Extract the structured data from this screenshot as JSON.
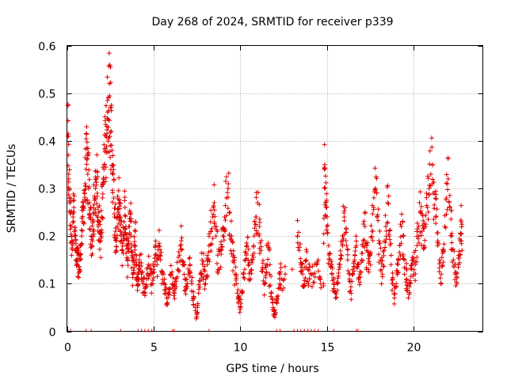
{
  "chart_data": {
    "type": "scatter",
    "title": "Day 268 of 2024, SRMTID for receiver p339",
    "xlabel": "GPS time / hours",
    "ylabel": "SRMTID / TECUs",
    "xlim": [
      0,
      24
    ],
    "ylim": [
      0,
      0.6
    ],
    "x_ticks": [
      0,
      5,
      10,
      15,
      20
    ],
    "y_ticks": [
      0,
      0.1,
      0.2,
      0.3,
      0.4,
      0.5,
      0.6
    ],
    "x_tick_labels": [
      "0",
      "5",
      "10",
      "15",
      "20"
    ],
    "y_tick_labels": [
      "0",
      "0.1",
      "0.2",
      "0.3",
      "0.4",
      "0.5",
      "0.6"
    ],
    "grid": true,
    "marker": "+",
    "series": [
      {
        "name": "SRMTID",
        "color": "#e00000",
        "points": [
          [
            0.05,
            0.41
          ],
          [
            0.08,
            0.37
          ],
          [
            0.1,
            0.33
          ],
          [
            0.15,
            0.28
          ],
          [
            0.2,
            0.25
          ],
          [
            0.25,
            0.22
          ],
          [
            0.3,
            0.19
          ],
          [
            0.35,
            0.24
          ],
          [
            0.4,
            0.26
          ],
          [
            0.45,
            0.2
          ],
          [
            0.5,
            0.17
          ],
          [
            0.55,
            0.15
          ],
          [
            0.6,
            0.14
          ],
          [
            0.65,
            0.16
          ],
          [
            0.7,
            0.13
          ],
          [
            0.75,
            0.15
          ],
          [
            0.8,
            0.18
          ],
          [
            0.85,
            0.2
          ],
          [
            0.9,
            0.23
          ],
          [
            0.95,
            0.26
          ],
          [
            1.0,
            0.29
          ],
          [
            1.05,
            0.31
          ],
          [
            1.1,
            0.34
          ],
          [
            1.15,
            0.36
          ],
          [
            1.2,
            0.33
          ],
          [
            1.25,
            0.3
          ],
          [
            1.3,
            0.27
          ],
          [
            1.35,
            0.24
          ],
          [
            1.4,
            0.2
          ],
          [
            1.45,
            0.18
          ],
          [
            1.5,
            0.21
          ],
          [
            1.55,
            0.25
          ],
          [
            1.6,
            0.28
          ],
          [
            1.65,
            0.3
          ],
          [
            1.7,
            0.32
          ],
          [
            1.75,
            0.29
          ],
          [
            1.8,
            0.26
          ],
          [
            1.85,
            0.23
          ],
          [
            1.9,
            0.21
          ],
          [
            1.95,
            0.19
          ],
          [
            2.0,
            0.24
          ],
          [
            2.05,
            0.28
          ],
          [
            2.1,
            0.31
          ],
          [
            2.15,
            0.35
          ],
          [
            2.2,
            0.38
          ],
          [
            2.25,
            0.41
          ],
          [
            2.3,
            0.43
          ],
          [
            2.35,
            0.46
          ],
          [
            2.4,
            0.49
          ],
          [
            2.45,
            0.52
          ],
          [
            2.5,
            0.47
          ],
          [
            2.55,
            0.42
          ],
          [
            2.6,
            0.38
          ],
          [
            2.65,
            0.33
          ],
          [
            2.7,
            0.28
          ],
          [
            2.75,
            0.24
          ],
          [
            2.8,
            0.21
          ],
          [
            2.85,
            0.19
          ],
          [
            2.9,
            0.22
          ],
          [
            2.95,
            0.25
          ],
          [
            3.0,
            0.27
          ],
          [
            3.05,
            0.24
          ],
          [
            3.1,
            0.21
          ],
          [
            3.15,
            0.19
          ],
          [
            3.2,
            0.17
          ],
          [
            3.25,
            0.2
          ],
          [
            3.3,
            0.23
          ],
          [
            3.35,
            0.26
          ],
          [
            3.4,
            0.22
          ],
          [
            3.45,
            0.18
          ],
          [
            3.5,
            0.15
          ],
          [
            3.55,
            0.19
          ],
          [
            3.6,
            0.22
          ],
          [
            3.65,
            0.25
          ],
          [
            3.7,
            0.2
          ],
          [
            3.75,
            0.16
          ],
          [
            3.8,
            0.12
          ],
          [
            3.85,
            0.15
          ],
          [
            3.9,
            0.18
          ],
          [
            3.95,
            0.21
          ],
          [
            4.0,
            0.14
          ],
          [
            4.05,
            0.12
          ],
          [
            4.1,
            0.1
          ],
          [
            4.15,
            0.13
          ],
          [
            4.2,
            0.16
          ],
          [
            4.3,
            0.12
          ],
          [
            4.4,
            0.1
          ],
          [
            4.5,
            0.09
          ],
          [
            4.6,
            0.11
          ],
          [
            4.7,
            0.14
          ],
          [
            4.8,
            0.12
          ],
          [
            4.9,
            0.1
          ],
          [
            5.0,
            0.13
          ],
          [
            5.1,
            0.16
          ],
          [
            5.2,
            0.14
          ],
          [
            5.3,
            0.18
          ],
          [
            5.4,
            0.15
          ],
          [
            5.5,
            0.12
          ],
          [
            5.6,
            0.1
          ],
          [
            5.7,
            0.08
          ],
          [
            5.8,
            0.06
          ],
          [
            5.9,
            0.09
          ],
          [
            6.0,
            0.12
          ],
          [
            6.1,
            0.1
          ],
          [
            6.2,
            0.08
          ],
          [
            6.3,
            0.11
          ],
          [
            6.4,
            0.13
          ],
          [
            6.5,
            0.16
          ],
          [
            6.6,
            0.19
          ],
          [
            6.7,
            0.14
          ],
          [
            6.8,
            0.11
          ],
          [
            6.9,
            0.09
          ],
          [
            7.0,
            0.12
          ],
          [
            7.1,
            0.14
          ],
          [
            7.2,
            0.1
          ],
          [
            7.3,
            0.07
          ],
          [
            7.4,
            0.05
          ],
          [
            7.5,
            0.03
          ],
          [
            7.6,
            0.08
          ],
          [
            7.7,
            0.12
          ],
          [
            7.8,
            0.15
          ],
          [
            7.9,
            0.13
          ],
          [
            8.0,
            0.1
          ],
          [
            8.1,
            0.14
          ],
          [
            8.2,
            0.18
          ],
          [
            8.3,
            0.21
          ],
          [
            8.4,
            0.24
          ],
          [
            8.5,
            0.27
          ],
          [
            8.6,
            0.2
          ],
          [
            8.7,
            0.16
          ],
          [
            8.8,
            0.13
          ],
          [
            8.9,
            0.17
          ],
          [
            9.0,
            0.2
          ],
          [
            9.1,
            0.24
          ],
          [
            9.2,
            0.28
          ],
          [
            9.3,
            0.3
          ],
          [
            9.4,
            0.25
          ],
          [
            9.5,
            0.2
          ],
          [
            9.6,
            0.16
          ],
          [
            9.7,
            0.12
          ],
          [
            9.8,
            0.1
          ],
          [
            9.9,
            0.07
          ],
          [
            10.0,
            0.05
          ],
          [
            10.1,
            0.08
          ],
          [
            10.2,
            0.12
          ],
          [
            10.3,
            0.15
          ],
          [
            10.4,
            0.18
          ],
          [
            10.5,
            0.14
          ],
          [
            10.6,
            0.11
          ],
          [
            10.7,
            0.16
          ],
          [
            10.8,
            0.2
          ],
          [
            10.9,
            0.24
          ],
          [
            11.0,
            0.27
          ],
          [
            11.1,
            0.22
          ],
          [
            11.2,
            0.17
          ],
          [
            11.3,
            0.13
          ],
          [
            11.4,
            0.1
          ],
          [
            11.5,
            0.14
          ],
          [
            11.6,
            0.18
          ],
          [
            11.7,
            0.12
          ],
          [
            11.8,
            0.08
          ],
          [
            11.9,
            0.05
          ],
          [
            12.0,
            0.03
          ],
          [
            12.1,
            0.06
          ],
          [
            12.2,
            0.09
          ],
          [
            12.3,
            0.12
          ],
          [
            12.4,
            0.11
          ],
          [
            12.6,
            0.12
          ],
          [
            13.0,
            0.13
          ],
          [
            13.3,
            0.2
          ],
          [
            13.4,
            0.17
          ],
          [
            13.5,
            0.14
          ],
          [
            13.6,
            0.12
          ],
          [
            13.7,
            0.1
          ],
          [
            13.8,
            0.15
          ],
          [
            13.9,
            0.13
          ],
          [
            14.0,
            0.11
          ],
          [
            14.2,
            0.12
          ],
          [
            14.4,
            0.14
          ],
          [
            14.6,
            0.11
          ],
          [
            14.8,
            0.1
          ],
          [
            14.85,
            0.34
          ],
          [
            14.9,
            0.3
          ],
          [
            14.95,
            0.26
          ],
          [
            15.0,
            0.22
          ],
          [
            15.1,
            0.18
          ],
          [
            15.2,
            0.14
          ],
          [
            15.3,
            0.12
          ],
          [
            15.4,
            0.09
          ],
          [
            15.5,
            0.07
          ],
          [
            15.6,
            0.1
          ],
          [
            15.7,
            0.13
          ],
          [
            15.8,
            0.16
          ],
          [
            15.9,
            0.2
          ],
          [
            16.0,
            0.24
          ],
          [
            16.1,
            0.19
          ],
          [
            16.2,
            0.15
          ],
          [
            16.3,
            0.11
          ],
          [
            16.4,
            0.08
          ],
          [
            16.5,
            0.12
          ],
          [
            16.6,
            0.15
          ],
          [
            16.7,
            0.18
          ],
          [
            16.8,
            0.14
          ],
          [
            16.9,
            0.12
          ],
          [
            17.0,
            0.15
          ],
          [
            17.1,
            0.19
          ],
          [
            17.2,
            0.22
          ],
          [
            17.3,
            0.17
          ],
          [
            17.4,
            0.13
          ],
          [
            17.5,
            0.16
          ],
          [
            17.6,
            0.21
          ],
          [
            17.7,
            0.26
          ],
          [
            17.8,
            0.3
          ],
          [
            17.9,
            0.24
          ],
          [
            18.0,
            0.19
          ],
          [
            18.1,
            0.15
          ],
          [
            18.2,
            0.12
          ],
          [
            18.3,
            0.17
          ],
          [
            18.4,
            0.22
          ],
          [
            18.5,
            0.27
          ],
          [
            18.6,
            0.2
          ],
          [
            18.7,
            0.14
          ],
          [
            18.8,
            0.1
          ],
          [
            18.9,
            0.07
          ],
          [
            19.0,
            0.1
          ],
          [
            19.1,
            0.14
          ],
          [
            19.2,
            0.18
          ],
          [
            19.3,
            0.22
          ],
          [
            19.4,
            0.2
          ],
          [
            19.5,
            0.15
          ],
          [
            19.6,
            0.11
          ],
          [
            19.7,
            0.07
          ],
          [
            19.8,
            0.1
          ],
          [
            19.9,
            0.13
          ],
          [
            20.0,
            0.15
          ],
          [
            20.1,
            0.14
          ],
          [
            20.2,
            0.18
          ],
          [
            20.3,
            0.22
          ],
          [
            20.4,
            0.25
          ],
          [
            20.5,
            0.21
          ],
          [
            20.6,
            0.18
          ],
          [
            20.7,
            0.22
          ],
          [
            20.8,
            0.26
          ],
          [
            20.9,
            0.3
          ],
          [
            21.0,
            0.33
          ],
          [
            21.1,
            0.35
          ],
          [
            21.2,
            0.29
          ],
          [
            21.3,
            0.24
          ],
          [
            21.4,
            0.19
          ],
          [
            21.5,
            0.15
          ],
          [
            21.6,
            0.12
          ],
          [
            21.7,
            0.17
          ],
          [
            21.8,
            0.22
          ],
          [
            21.9,
            0.28
          ],
          [
            22.0,
            0.32
          ],
          [
            22.1,
            0.26
          ],
          [
            22.2,
            0.2
          ],
          [
            22.3,
            0.15
          ],
          [
            22.4,
            0.12
          ],
          [
            22.5,
            0.1
          ],
          [
            22.6,
            0.14
          ],
          [
            22.7,
            0.19
          ],
          [
            22.75,
            0.23
          ],
          [
            22.8,
            0.17
          ]
        ],
        "zero_points": [
          0.2,
          1.1,
          1.4,
          3.1,
          4.1,
          4.3,
          4.5,
          4.7,
          4.9,
          6.1,
          6.2,
          8.2,
          12.1,
          12.3,
          13.1,
          13.3,
          13.5,
          13.7,
          13.9,
          14.1,
          14.3,
          14.5,
          15.4,
          16.7,
          16.8
        ]
      }
    ]
  }
}
